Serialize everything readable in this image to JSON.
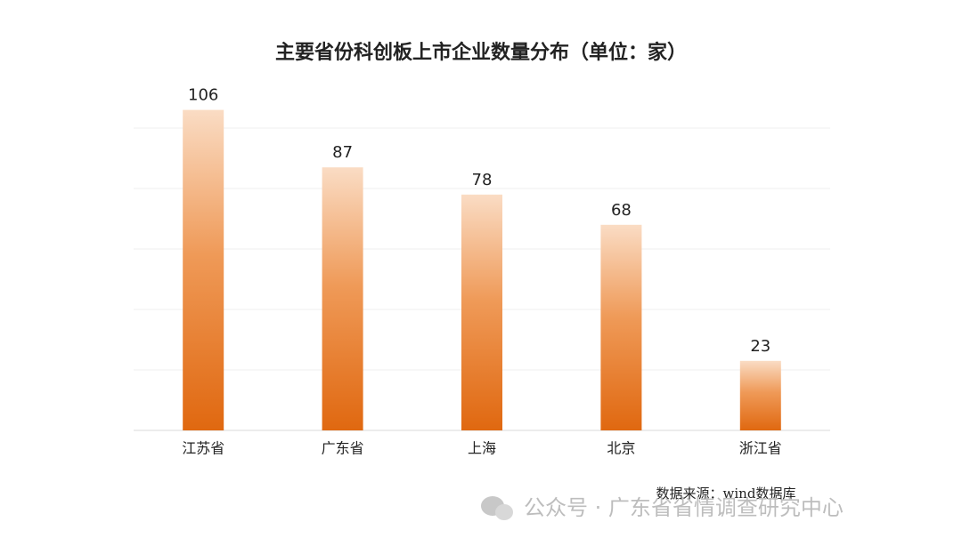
{
  "chart_data": {
    "type": "bar",
    "title": "主要省份科创板上市企业数量分布（单位：家）",
    "categories": [
      "江苏省",
      "广东省",
      "上海",
      "北京",
      "浙江省"
    ],
    "values": [
      106,
      87,
      78,
      68,
      23
    ],
    "color": "#e26d16",
    "ylim": [
      0,
      120
    ],
    "yticks": [
      0,
      20,
      40,
      60,
      80,
      100
    ],
    "grid": true,
    "source": "数据来源：wind数据库",
    "watermark": "公众号 · 广东省省情调查研究中心"
  }
}
